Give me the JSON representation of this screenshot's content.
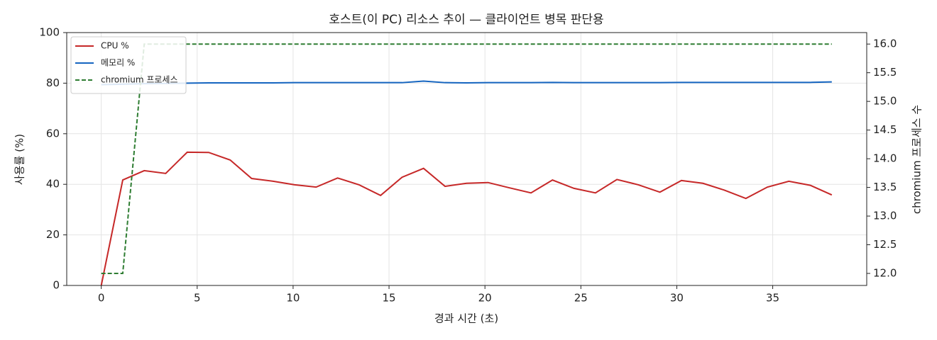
{
  "chart_data": {
    "type": "line",
    "title": "호스트(이 PC) 리소스 추이 — 클라이언트 병목 판단용",
    "xlabel": "경과 시간 (초)",
    "ylabel": "사용률 (%)",
    "y2label": "chromium 프로세스 수",
    "x": [
      0,
      1.12,
      2.24,
      3.36,
      4.48,
      5.6,
      6.72,
      7.84,
      8.96,
      10.08,
      11.2,
      12.32,
      13.44,
      14.56,
      15.68,
      16.8,
      17.92,
      19.04,
      20.16,
      21.28,
      22.4,
      23.52,
      24.64,
      25.76,
      26.88,
      28.0,
      29.12,
      30.24,
      31.36,
      32.48,
      33.6,
      34.72,
      35.84,
      36.96,
      38.08
    ],
    "series": [
      {
        "name": "CPU %",
        "color": "#c62828",
        "dash": false,
        "values": [
          0,
          41.7,
          45.4,
          44.3,
          52.7,
          52.6,
          49.6,
          42.3,
          41.2,
          39.8,
          38.9,
          42.5,
          39.8,
          35.6,
          42.8,
          46.3,
          39.2,
          40.4,
          40.7,
          38.6,
          36.6,
          41.7,
          38.4,
          36.6,
          41.9,
          39.8,
          36.9,
          41.5,
          40.4,
          37.7,
          34.4,
          38.9,
          41.2,
          39.6,
          35.8
        ]
      },
      {
        "name": "메모리 %",
        "color": "#1565c0",
        "dash": false,
        "values": [
          79.4,
          79.6,
          79.8,
          79.9,
          80.0,
          80.1,
          80.1,
          80.1,
          80.1,
          80.2,
          80.2,
          80.2,
          80.2,
          80.2,
          80.2,
          80.8,
          80.2,
          80.1,
          80.2,
          80.2,
          80.2,
          80.3,
          80.2,
          80.2,
          80.2,
          80.2,
          80.2,
          80.3,
          80.3,
          80.3,
          80.3,
          80.3,
          80.3,
          80.3,
          80.5
        ]
      },
      {
        "name": "chromium 프로세스",
        "color": "#2e7d32",
        "dash": true,
        "axis": "y2",
        "values": [
          12,
          12,
          16,
          16,
          16,
          16,
          16,
          16,
          16,
          16,
          16,
          16,
          16,
          16,
          16,
          16,
          16,
          16,
          16,
          16,
          16,
          16,
          16,
          16,
          16,
          16,
          16,
          16,
          16,
          16,
          16,
          16,
          16,
          16,
          16
        ]
      }
    ],
    "xlim": [
      -1.8,
      39.9
    ],
    "xticks": [
      0,
      5,
      10,
      15,
      20,
      25,
      30,
      35
    ],
    "ylim": [
      0,
      100
    ],
    "yticks": [
      0,
      20,
      40,
      60,
      80,
      100
    ],
    "y2lim": [
      11.79,
      16.2
    ],
    "y2ticks": [
      {
        "value": 12,
        "label": "12.0"
      },
      12.5,
      {
        "value": 13,
        "label": "13.0"
      },
      13.5,
      {
        "value": 14,
        "label": "14.0"
      },
      14.5,
      {
        "value": 15,
        "label": "15.0"
      },
      15.5,
      {
        "value": 16,
        "label": "16.0"
      }
    ],
    "grid": true,
    "legend": "upper left"
  }
}
